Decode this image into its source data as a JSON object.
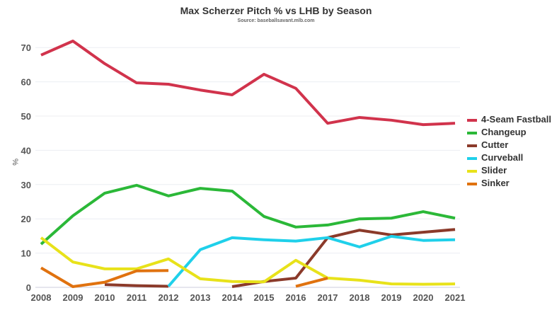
{
  "chart_data": {
    "type": "line",
    "title": "Max Scherzer Pitch % vs LHB by Season",
    "subtitle": "Source: baseballsavant.mlb.com",
    "xlabel": "",
    "ylabel": "%",
    "ylim": [
      0,
      72
    ],
    "yticks": [
      0,
      10,
      20,
      30,
      40,
      50,
      60,
      70
    ],
    "x": [
      2008,
      2009,
      2010,
      2011,
      2012,
      2013,
      2014,
      2015,
      2016,
      2017,
      2018,
      2019,
      2020,
      2021
    ],
    "legend_position": "right",
    "grid": true,
    "series": [
      {
        "name": "4-Seam Fastball",
        "color": "#d1334c",
        "values": [
          67.8,
          71.9,
          65.3,
          59.7,
          59.3,
          57.6,
          56.2,
          62.2,
          58.1,
          47.9,
          49.6,
          48.8,
          47.5,
          47.9
        ]
      },
      {
        "name": "Changeup",
        "color": "#2bb838",
        "values": [
          12.6,
          20.9,
          27.5,
          29.8,
          26.7,
          28.9,
          28.1,
          20.7,
          17.6,
          18.2,
          20.0,
          20.2,
          22.1,
          20.2
        ]
      },
      {
        "name": "Cutter",
        "color": "#8b3a2a",
        "values": [
          null,
          null,
          0.8,
          0.5,
          0.3,
          null,
          0.2,
          1.7,
          2.7,
          14.5,
          16.7,
          15.3,
          16.1,
          16.9
        ]
      },
      {
        "name": "Curveball",
        "color": "#1fd0ea",
        "values": [
          null,
          null,
          null,
          null,
          0.3,
          11.0,
          14.5,
          13.9,
          13.5,
          14.5,
          11.8,
          14.9,
          13.7,
          13.9
        ]
      },
      {
        "name": "Slider",
        "color": "#e8e21a",
        "values": [
          14.5,
          7.4,
          5.4,
          5.4,
          8.3,
          2.5,
          1.7,
          1.6,
          7.9,
          2.7,
          2.1,
          1.0,
          0.9,
          1.0
        ]
      },
      {
        "name": "Sinker",
        "color": "#e0720f",
        "values": [
          5.7,
          0.2,
          1.5,
          4.8,
          4.9,
          null,
          null,
          null,
          0.3,
          2.7,
          null,
          null,
          null,
          null
        ]
      }
    ]
  }
}
